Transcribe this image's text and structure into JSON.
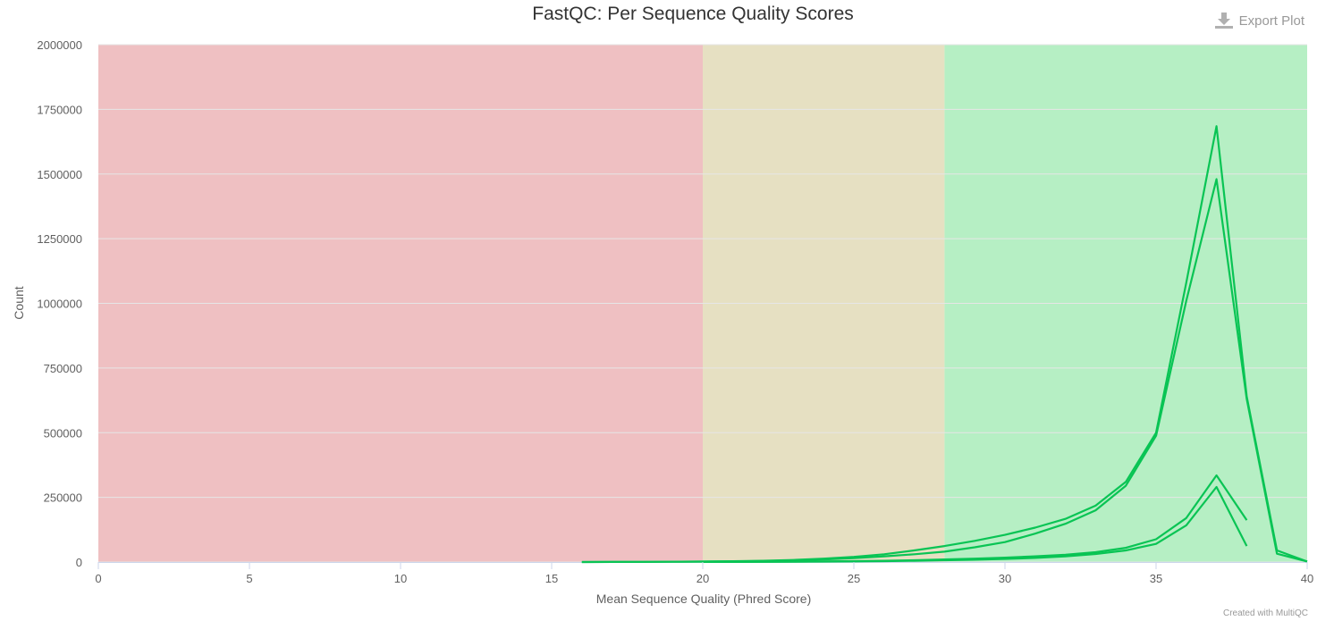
{
  "export_label": "Export Plot",
  "credit": "Created with MultiQC",
  "colors": {
    "fail": "#efc0c2",
    "warn": "#e6e0c2",
    "pass": "#b6efc4",
    "line": "#09c454"
  },
  "chart_data": {
    "type": "line",
    "title": "FastQC: Per Sequence Quality Scores",
    "xlabel": "Mean Sequence Quality (Phred Score)",
    "ylabel": "Count",
    "xlim": [
      0,
      40
    ],
    "ylim": [
      0,
      2000000
    ],
    "xticks": [
      "0",
      "5",
      "10",
      "15",
      "20",
      "25",
      "30",
      "35",
      "40"
    ],
    "yticks": [
      "0",
      "250000",
      "500000",
      "750000",
      "1000000",
      "1250000",
      "1500000",
      "1750000",
      "2000000"
    ],
    "bands": [
      {
        "from": 0,
        "to": 20,
        "status": "fail"
      },
      {
        "from": 20,
        "to": 28,
        "status": "warn"
      },
      {
        "from": 28,
        "to": 40,
        "status": "pass"
      }
    ],
    "grid": true,
    "legend": "none",
    "series": [
      {
        "x": [
          16,
          17,
          18,
          19,
          20,
          21,
          22,
          23,
          24,
          25,
          26,
          27,
          28,
          29,
          30,
          31,
          32,
          33,
          34,
          35,
          36,
          37,
          38,
          39,
          40
        ],
        "y": [
          100,
          300,
          600,
          1000,
          2000,
          3000,
          5000,
          8000,
          13000,
          20000,
          30000,
          45000,
          62000,
          82000,
          105000,
          133000,
          167000,
          218000,
          310000,
          500000,
          1080000,
          1685000,
          640000,
          45000,
          2000
        ]
      },
      {
        "x": [
          16,
          17,
          18,
          19,
          20,
          21,
          22,
          23,
          24,
          25,
          26,
          27,
          28,
          29,
          30,
          31,
          32,
          33,
          34,
          35,
          36,
          37,
          38,
          39,
          40
        ],
        "y": [
          100,
          300,
          500,
          900,
          1500,
          2500,
          4000,
          6500,
          10000,
          15000,
          22000,
          30000,
          40000,
          57000,
          77000,
          110000,
          148000,
          200000,
          295000,
          488000,
          1010000,
          1480000,
          630000,
          32000,
          2000
        ]
      },
      {
        "x": [
          20,
          21,
          22,
          23,
          24,
          25,
          26,
          27,
          28,
          29,
          30,
          31,
          32,
          33,
          34,
          35,
          36,
          37,
          38
        ],
        "y": [
          500,
          800,
          1200,
          1800,
          2500,
          3500,
          5000,
          7000,
          10000,
          13000,
          17000,
          22000,
          28000,
          38000,
          55000,
          88000,
          170000,
          335000,
          162000
        ]
      },
      {
        "x": [
          20,
          21,
          22,
          23,
          24,
          25,
          26,
          27,
          28,
          29,
          30,
          31,
          32,
          33,
          34,
          35,
          36,
          37,
          38
        ],
        "y": [
          300,
          500,
          800,
          1200,
          1800,
          2500,
          3500,
          5000,
          7000,
          9000,
          12000,
          16000,
          22000,
          31000,
          45000,
          70000,
          142000,
          290000,
          62000
        ]
      }
    ]
  }
}
